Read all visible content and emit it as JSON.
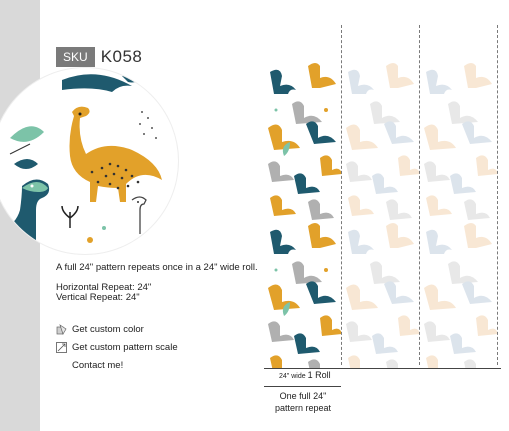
{
  "product": {
    "sku_label": "SKU",
    "sku_code": "K058"
  },
  "description": "A full 24\" pattern repeats once in a 24\" wide roll.",
  "repeats": {
    "horizontal": "Horizontal Repeat: 24\"",
    "vertical": "Vertical Repeat: 24\""
  },
  "links": {
    "custom_color": "Get custom color",
    "custom_scale": "Get custom pattern scale",
    "contact": "Contact me!"
  },
  "dimensions": {
    "width_small": "24\" wide",
    "roll": "1 Roll",
    "repeat_line1": "One full 24\"",
    "repeat_line2": "pattern repeat"
  },
  "colors": {
    "mustard": "#e2a12a",
    "teal": "#1f5a6e",
    "light_green": "#7cc3a8",
    "gray": "#8f8f8f",
    "light_blue": "#aebfd4",
    "peach": "#f0c89a"
  },
  "icons": [
    "dinosaur-icon",
    "leaf-icon",
    "color-swatch-icon",
    "scale-icon"
  ]
}
